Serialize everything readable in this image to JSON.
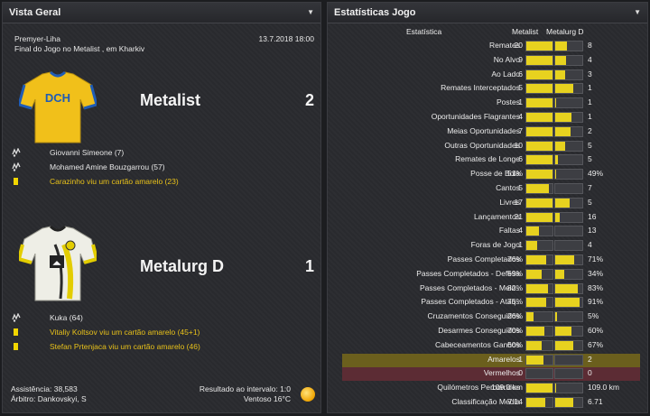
{
  "left_panel": {
    "title": "Vista Geral",
    "competition": "Premyer-Liha",
    "datetime": "13.7.2018 18:00",
    "venue": "Final do Jogo no Metalist , em Kharkiv",
    "home": {
      "name": "Metalist",
      "score": "2",
      "kit_text": "DCH",
      "kit_colors": {
        "main": "#f2c21b",
        "trim": "#1f5cb6"
      },
      "events": [
        {
          "icon": "ball-icon",
          "text": "Giovanni Simeone (7)",
          "highlight": false
        },
        {
          "icon": "ball-icon",
          "text": "Mohamed Amine Bouzgarrou (57)",
          "highlight": false
        },
        {
          "icon": "yellow-card-icon",
          "text": "Carazinho viu um cartão amarelo (23)",
          "highlight": true
        }
      ]
    },
    "away": {
      "name": "Metalurg D",
      "score": "1",
      "kit_colors": {
        "main": "#efefe8",
        "trim": "#e8d100"
      },
      "events": [
        {
          "icon": "ball-icon",
          "text": "Kuka (64)",
          "highlight": false
        },
        {
          "icon": "yellow-card-icon",
          "text": "Vitaliy Koltsov viu um cartão amarelo (45+1)",
          "highlight": true
        },
        {
          "icon": "yellow-card-icon",
          "text": "Stefan Prtenjaca viu um cartão amarelo (46)",
          "highlight": true
        }
      ]
    },
    "footer": {
      "attendance": "Assistência: 38,583",
      "referee": "Árbitro: Dankovskyi, S",
      "halftime": "Resultado ao intervalo: 1:0",
      "weather": "Ventoso 16°C",
      "weather_icon": "sun-icon"
    }
  },
  "right_panel": {
    "title": "Estatísticas Jogo",
    "headers": {
      "stat": "Estatística",
      "home": "Metalist",
      "away": "Metalurg D"
    },
    "rows": [
      {
        "label": "Remates",
        "home": "20",
        "away": "8",
        "home_share": 0.71,
        "highlight": ""
      },
      {
        "label": "No Alvo",
        "home": "9",
        "away": "4",
        "home_share": 0.69,
        "highlight": ""
      },
      {
        "label": "Ao Lado",
        "home": "6",
        "away": "3",
        "home_share": 0.67,
        "highlight": ""
      },
      {
        "label": "Remates Interceptados",
        "home": "5",
        "away": "1",
        "home_share": 0.83,
        "highlight": ""
      },
      {
        "label": "Postes",
        "home": "1",
        "away": "1",
        "home_share": 0.5,
        "highlight": ""
      },
      {
        "label": "Oportunidades Flagrantes",
        "home": "4",
        "away": "1",
        "home_share": 0.8,
        "highlight": ""
      },
      {
        "label": "Meias Oportunidades",
        "home": "7",
        "away": "2",
        "home_share": 0.78,
        "highlight": ""
      },
      {
        "label": "Outras Oportunidades",
        "home": "10",
        "away": "5",
        "home_share": 0.67,
        "highlight": ""
      },
      {
        "label": "Remates de Longe",
        "home": "6",
        "away": "5",
        "home_share": 0.55,
        "highlight": ""
      },
      {
        "label": "Posse de Bola",
        "home": "51%",
        "away": "49%",
        "home_share": 0.51,
        "highlight": ""
      },
      {
        "label": "Cantos",
        "home": "5",
        "away": "7",
        "home_share": 0.42,
        "highlight": ""
      },
      {
        "label": "Livres",
        "home": "17",
        "away": "5",
        "home_share": 0.77,
        "highlight": ""
      },
      {
        "label": "Lançamentos",
        "home": "21",
        "away": "16",
        "home_share": 0.57,
        "highlight": ""
      },
      {
        "label": "Faltas",
        "home": "4",
        "away": "13",
        "home_share": 0.24,
        "highlight": ""
      },
      {
        "label": "Foras de Jogo",
        "home": "1",
        "away": "4",
        "home_share": 0.2,
        "highlight": ""
      },
      {
        "label": "Passes Completados",
        "home": "76%",
        "away": "71%",
        "home_share": 0.76,
        "away_share": 0.71,
        "highlight": ""
      },
      {
        "label": "Passes Completados - Defesa",
        "home": "59%",
        "away": "34%",
        "home_share": 0.59,
        "away_share": 0.34,
        "highlight": ""
      },
      {
        "label": "Passes Completados - Meio..",
        "home": "82%",
        "away": "83%",
        "home_share": 0.82,
        "away_share": 0.83,
        "highlight": ""
      },
      {
        "label": "Passes Completados - Ataq..",
        "home": "75%",
        "away": "91%",
        "home_share": 0.75,
        "away_share": 0.91,
        "highlight": ""
      },
      {
        "label": "Cruzamentos Conseguidos",
        "home": "26%",
        "away": "5%",
        "home_share": 0.26,
        "away_share": 0.05,
        "highlight": ""
      },
      {
        "label": "Desarmes Conseguidos",
        "home": "70%",
        "away": "60%",
        "home_share": 0.7,
        "away_share": 0.6,
        "highlight": ""
      },
      {
        "label": "Cabeceamentos Ganhos",
        "home": "60%",
        "away": "67%",
        "home_share": 0.6,
        "away_share": 0.67,
        "highlight": ""
      },
      {
        "label": "Amarelos",
        "home": "1",
        "away": "2",
        "home_share": 0.33,
        "highlight": "yellow"
      },
      {
        "label": "Vermelhos",
        "home": "0",
        "away": "0",
        "home_share": 0.0,
        "away_share": 0.0,
        "highlight": "red"
      },
      {
        "label": "Quilómetros Percorridos",
        "home": "109.0 km",
        "away": "109.0 km",
        "home_share": 0.5,
        "highlight": ""
      },
      {
        "label": "Classificação Média",
        "home": "7.14",
        "away": "6.71",
        "home_share": 0.71,
        "away_share": 0.67,
        "highlight": ""
      }
    ]
  }
}
